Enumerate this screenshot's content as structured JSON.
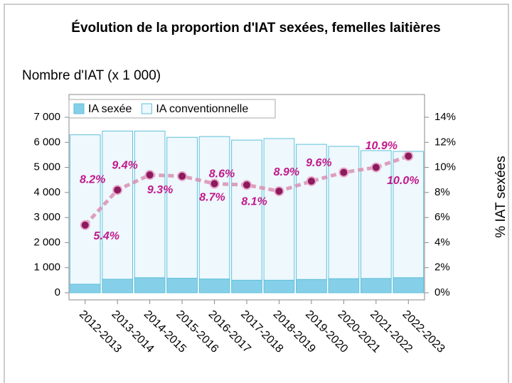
{
  "chart_data": {
    "type": "bar-line",
    "title": "Évolution de la proportion d'IAT sexées, femelles laitières",
    "ylabel": "Nombre d'IAT (x 1 000)",
    "y2label": "% IAT sexées",
    "categories": [
      "2012-2013",
      "2013-2014",
      "2014-2015",
      "2015-2016",
      "2016-2017",
      "2017-2018",
      "2018-2019",
      "2019-2020",
      "2020-2021",
      "2021-2022",
      "2022-2023"
    ],
    "series": [
      {
        "name": "IA sexée",
        "color": "#86cfe9",
        "values": [
          340,
          540,
          600,
          580,
          550,
          500,
          500,
          530,
          560,
          570,
          600
        ]
      },
      {
        "name": "IA conventionnelle",
        "color": "#eef8fd",
        "values": [
          5960,
          5910,
          5850,
          5620,
          5680,
          5590,
          5650,
          5390,
          5280,
          5100,
          5040
        ]
      },
      {
        "name": "% IAT sexées",
        "axis": "y2",
        "color": "#c2185b",
        "values": [
          5.4,
          8.2,
          9.4,
          9.3,
          8.7,
          8.6,
          8.1,
          8.9,
          9.6,
          10.0,
          10.9
        ],
        "value_labels": [
          "5.4%",
          "8.2%",
          "9.4%",
          "9.3%",
          "8.7%",
          "8.6%",
          "8.1%",
          "8.9%",
          "9.6%",
          "10.0%",
          "10.9%"
        ]
      }
    ],
    "ylim": [
      0,
      7000
    ],
    "yticks": [
      0,
      {
        "value": 1000,
        "label": "1 000"
      },
      {
        "value": 2000,
        "label": "2 000"
      },
      {
        "value": 3000,
        "label": "3 000"
      },
      {
        "value": 4000,
        "label": "4 000"
      },
      {
        "value": 5000,
        "label": "5 000"
      },
      {
        "value": 6000,
        "label": "6 000"
      },
      {
        "value": 7000,
        "label": "7 000"
      }
    ],
    "y2lim": [
      0,
      14
    ],
    "y2ticks": [
      {
        "value": 0,
        "label": "0%"
      },
      {
        "value": 2,
        "label": "2%"
      },
      {
        "value": 4,
        "label": "4%"
      },
      {
        "value": 6,
        "label": "6%"
      },
      {
        "value": 8,
        "label": "8%"
      },
      {
        "value": 10,
        "label": "10%"
      },
      {
        "value": 12,
        "label": "12%"
      },
      {
        "value": 14,
        "label": "14%"
      }
    ],
    "legend": "top-left"
  }
}
